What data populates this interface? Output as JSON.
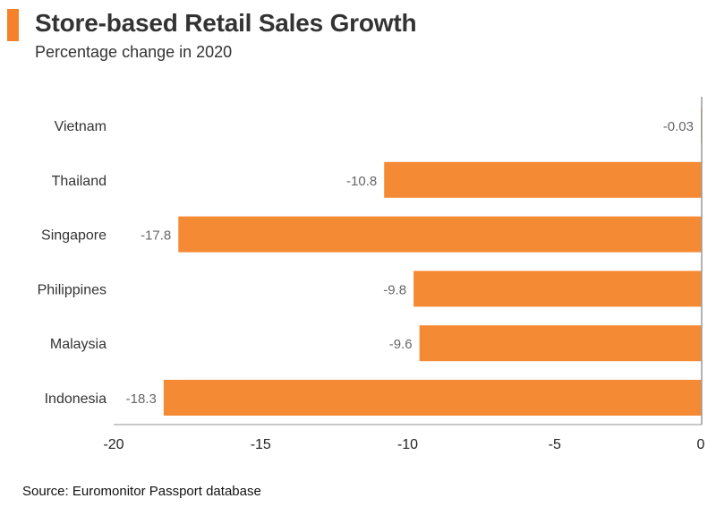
{
  "header": {
    "title": "Store-based Retail Sales Growth",
    "subtitle": "Percentage change in 2020",
    "accent_color": "#f5822a"
  },
  "footer": {
    "source": "Source: Euromonitor Passport database"
  },
  "chart_data": {
    "type": "bar",
    "orientation": "horizontal",
    "title": "Store-based Retail Sales Growth",
    "subtitle": "Percentage change in 2020",
    "xlabel": "",
    "ylabel": "",
    "categories": [
      "Vietnam",
      "Thailand",
      "Singapore",
      "Philippines",
      "Malaysia",
      "Indonesia"
    ],
    "values": [
      -0.03,
      -10.8,
      -17.8,
      -9.8,
      -9.6,
      -18.3
    ],
    "value_labels": [
      "-0.03",
      "-10.8",
      "-17.8",
      "-9.8",
      "-9.6",
      "-18.3"
    ],
    "xlim": [
      -20,
      0
    ],
    "xticks": [
      -20,
      -15,
      -10,
      -5,
      0
    ],
    "xtick_labels": [
      "-20",
      "-15",
      "-10",
      "-5",
      "0"
    ],
    "bar_color": "#f58a35",
    "grid": false,
    "legend": "none"
  }
}
